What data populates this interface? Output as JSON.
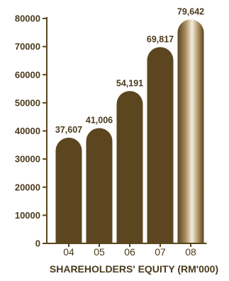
{
  "chart_data": {
    "type": "bar",
    "title": "SHAREHOLDERS' EQUITY (RM'000)",
    "categories": [
      "04",
      "05",
      "06",
      "07",
      "08"
    ],
    "values": [
      37607,
      41006,
      54191,
      69817,
      79642
    ],
    "value_labels": [
      "37,607",
      "41,006",
      "54,191",
      "69,817",
      "79,642"
    ],
    "yticks": [
      0,
      10000,
      20000,
      30000,
      40000,
      50000,
      60000,
      70000,
      80000
    ],
    "ytick_labels": [
      "0",
      "10000",
      "20000",
      "30000",
      "40000",
      "50000",
      "60000",
      "70000",
      "80000"
    ],
    "ylim": [
      0,
      80000
    ],
    "grid": false,
    "colors": {
      "bar": "#5c4620",
      "highlight_bar_dark": "#5a4520",
      "highlight_bar_light": "#f4ecdc",
      "axis": "#5a4620",
      "text": "#4a3a1c"
    },
    "highlight_index": 4
  }
}
